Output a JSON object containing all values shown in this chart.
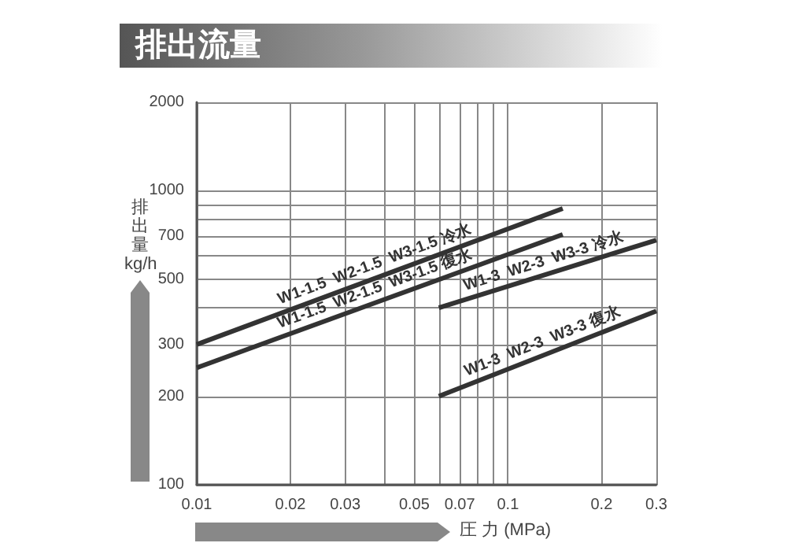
{
  "chart_data": {
    "type": "line",
    "title": "排出流量",
    "xlabel": "圧 力 (MPa)",
    "ylabel": "排出量 kg/h",
    "log": "xy",
    "grid": true,
    "legend": false,
    "marker": "none",
    "line_style": "solid",
    "xlim": [
      0.01,
      0.3
    ],
    "ylim": [
      100,
      2000
    ],
    "xticks": [
      0.01,
      0.02,
      0.03,
      {
        "value": 0.04,
        "label": null
      },
      0.05,
      {
        "value": 0.06,
        "label": null
      },
      0.07,
      {
        "value": 0.08,
        "label": null
      },
      {
        "value": 0.09,
        "label": null
      },
      0.1,
      0.2,
      0.3
    ],
    "yticks": [
      100,
      200,
      300,
      {
        "value": 400,
        "label": null
      },
      500,
      {
        "value": 600,
        "label": null
      },
      700,
      {
        "value": 800,
        "label": null
      },
      {
        "value": 900,
        "label": null
      },
      1000,
      2000
    ],
    "series": [
      {
        "name": "W1-1.5  W2-1.5  W3-1.5 冷水",
        "color": "#333333",
        "x": [
          0.01,
          0.15
        ],
        "values": [
          300,
          870
        ]
      },
      {
        "name": "W1-1.5  W2-1.5  W3-1.5 復水",
        "color": "#333333",
        "x": [
          0.01,
          0.15
        ],
        "values": [
          250,
          710
        ]
      },
      {
        "name": "W1-3  W2-3  W3-3 冷水",
        "color": "#333333",
        "x": [
          0.06,
          0.3
        ],
        "values": [
          400,
          680
        ]
      },
      {
        "name": "W1-3  W2-3  W3-3 復水",
        "color": "#333333",
        "x": [
          0.06,
          0.3
        ],
        "values": [
          200,
          390
        ]
      }
    ]
  }
}
